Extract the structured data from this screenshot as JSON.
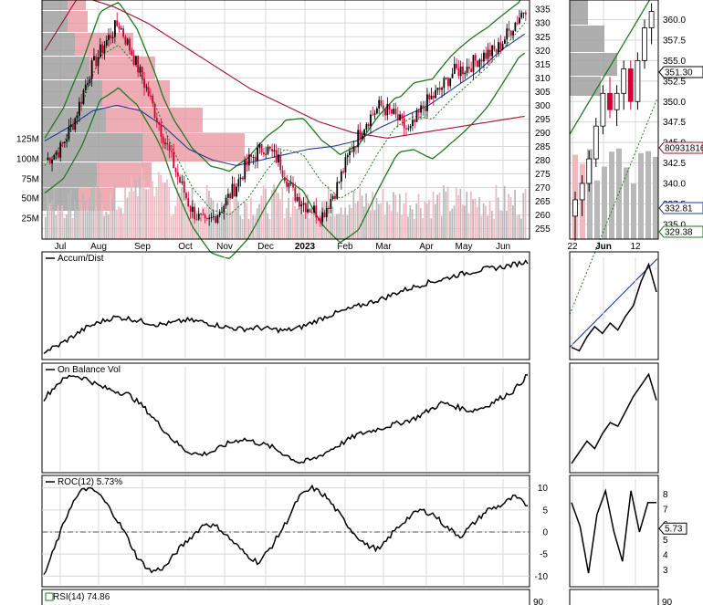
{
  "chart_data": [
    {
      "name": "price",
      "type": "candlestick",
      "x_labels": [
        "Jul",
        "Aug",
        "Sep",
        "Oct",
        "Nov",
        "Dec",
        "2023",
        "Feb",
        "Mar",
        "Apr",
        "May",
        "Jun"
      ],
      "price_ticks": [
        335,
        330,
        325,
        320,
        315,
        310,
        305,
        300,
        295,
        290,
        285,
        280,
        275,
        270,
        265,
        260,
        255
      ],
      "volume_ticks": [
        "125M",
        "100M",
        "75M",
        "50M",
        "25M"
      ],
      "price_path": [
        280,
        284,
        295,
        312,
        322,
        330,
        318,
        305,
        290,
        275,
        262,
        256,
        262,
        270,
        280,
        285,
        280,
        268,
        263,
        260,
        270,
        284,
        294,
        300,
        296,
        290,
        300,
        305,
        312,
        314,
        318,
        320,
        328,
        336
      ],
      "sma_fast": [
        278,
        286,
        300,
        318,
        322,
        314,
        300,
        283,
        270,
        262,
        260,
        266,
        276,
        284,
        282,
        272,
        266,
        270,
        282,
        292,
        296,
        295,
        302,
        308,
        314,
        322,
        330
      ],
      "sma_slow": [
        287,
        292,
        298,
        300,
        298,
        292,
        284,
        280,
        278,
        280,
        282,
        284,
        285,
        287,
        292,
        296,
        300,
        306,
        312,
        320,
        326
      ],
      "sma_long": [
        320,
        340,
        336,
        330,
        322,
        314,
        306,
        300,
        294,
        290,
        288,
        290,
        292,
        294,
        296
      ]
    },
    {
      "name": "zoom",
      "type": "candlestick",
      "x_labels": [
        "22",
        "Jun",
        "12"
      ],
      "price_ticks": [
        360.0,
        357.5,
        355.0,
        352.5,
        350.0,
        347.5,
        345.0,
        342.5,
        340.0,
        337.5,
        335.0
      ],
      "value_badges": [
        "351.30",
        "80931816",
        "332.81",
        "329.38"
      ],
      "candles": [
        {
          "o": 336,
          "h": 339,
          "l": 333,
          "c": 338
        },
        {
          "o": 338,
          "h": 341,
          "l": 336,
          "c": 340
        },
        {
          "o": 340,
          "h": 344,
          "l": 339,
          "c": 343
        },
        {
          "o": 343,
          "h": 348,
          "l": 342,
          "c": 347
        },
        {
          "o": 347,
          "h": 352,
          "l": 346,
          "c": 351
        },
        {
          "o": 351,
          "h": 353,
          "l": 348,
          "c": 349
        },
        {
          "o": 349,
          "h": 352,
          "l": 347,
          "c": 351
        },
        {
          "o": 351,
          "h": 355,
          "l": 349,
          "c": 354
        },
        {
          "o": 354,
          "h": 355,
          "l": 349,
          "c": 350
        },
        {
          "o": 350,
          "h": 356,
          "l": 349,
          "c": 355
        },
        {
          "o": 355,
          "h": 360,
          "l": 354,
          "c": 359
        },
        {
          "o": 359,
          "h": 362,
          "l": 357,
          "c": 361
        }
      ]
    },
    {
      "name": "accum_dist",
      "type": "line",
      "label": "Accum/Dist",
      "values": [
        2,
        6,
        12,
        18,
        22,
        25,
        24,
        22,
        20,
        21,
        23,
        22,
        20,
        18,
        17,
        18,
        17,
        16,
        18,
        22,
        26,
        29,
        32,
        35,
        38,
        42,
        45,
        48,
        50,
        53,
        55,
        57,
        58,
        60,
        62
      ],
      "zoom_values": [
        6,
        4,
        12,
        18,
        14,
        20,
        16,
        24,
        30,
        44,
        54,
        38
      ]
    },
    {
      "name": "on_balance_vol",
      "type": "line",
      "label": "On Balance Vol",
      "values": [
        36,
        44,
        48,
        46,
        42,
        40,
        38,
        32,
        24,
        16,
        10,
        8,
        10,
        14,
        16,
        14,
        12,
        8,
        4,
        6,
        10,
        14,
        18,
        20,
        22,
        24,
        26,
        30,
        34,
        32,
        30,
        32,
        36,
        40,
        48
      ],
      "zoom_values": [
        4,
        10,
        16,
        12,
        20,
        26,
        24,
        32,
        40,
        46,
        52,
        38
      ]
    },
    {
      "name": "roc",
      "type": "line",
      "label": "ROC(12) 5.73%",
      "y_ticks": [
        10,
        5,
        0,
        -5,
        -10
      ],
      "zoom_y_ticks": [
        8,
        7,
        6,
        5,
        4,
        3
      ],
      "zoom_badge": "5.73",
      "values": [
        -10,
        -2,
        6,
        10,
        9,
        5,
        0,
        -6,
        -9,
        -8,
        -4,
        -1,
        2,
        1,
        -2,
        -5,
        -7,
        -3,
        2,
        8,
        10,
        8,
        4,
        0,
        -3,
        -4,
        0,
        3,
        5,
        4,
        1,
        -1,
        2,
        5,
        6,
        8,
        6
      ],
      "zoom_values": [
        6,
        2,
        -6,
        4,
        8,
        1,
        -4,
        8,
        1,
        6,
        6
      ]
    },
    {
      "name": "rsi",
      "type": "line",
      "label": "RSI(14) 74.86",
      "y_ticks": [
        90
      ],
      "zoom_y_ticks": [
        90
      ]
    }
  ],
  "colors": {
    "up": "#000000",
    "down": "#cc0033",
    "bollinger": "#1f7a1f",
    "sma_dashed": "#1f7a1f",
    "sma_blue": "#1f3a93",
    "sma_red": "#a01030",
    "volume_down": "#f2b8c0",
    "volume_up": "#b8b8b8",
    "volume_profile_gray": "#a0a0a0",
    "volume_profile_red": "#e8909c"
  }
}
